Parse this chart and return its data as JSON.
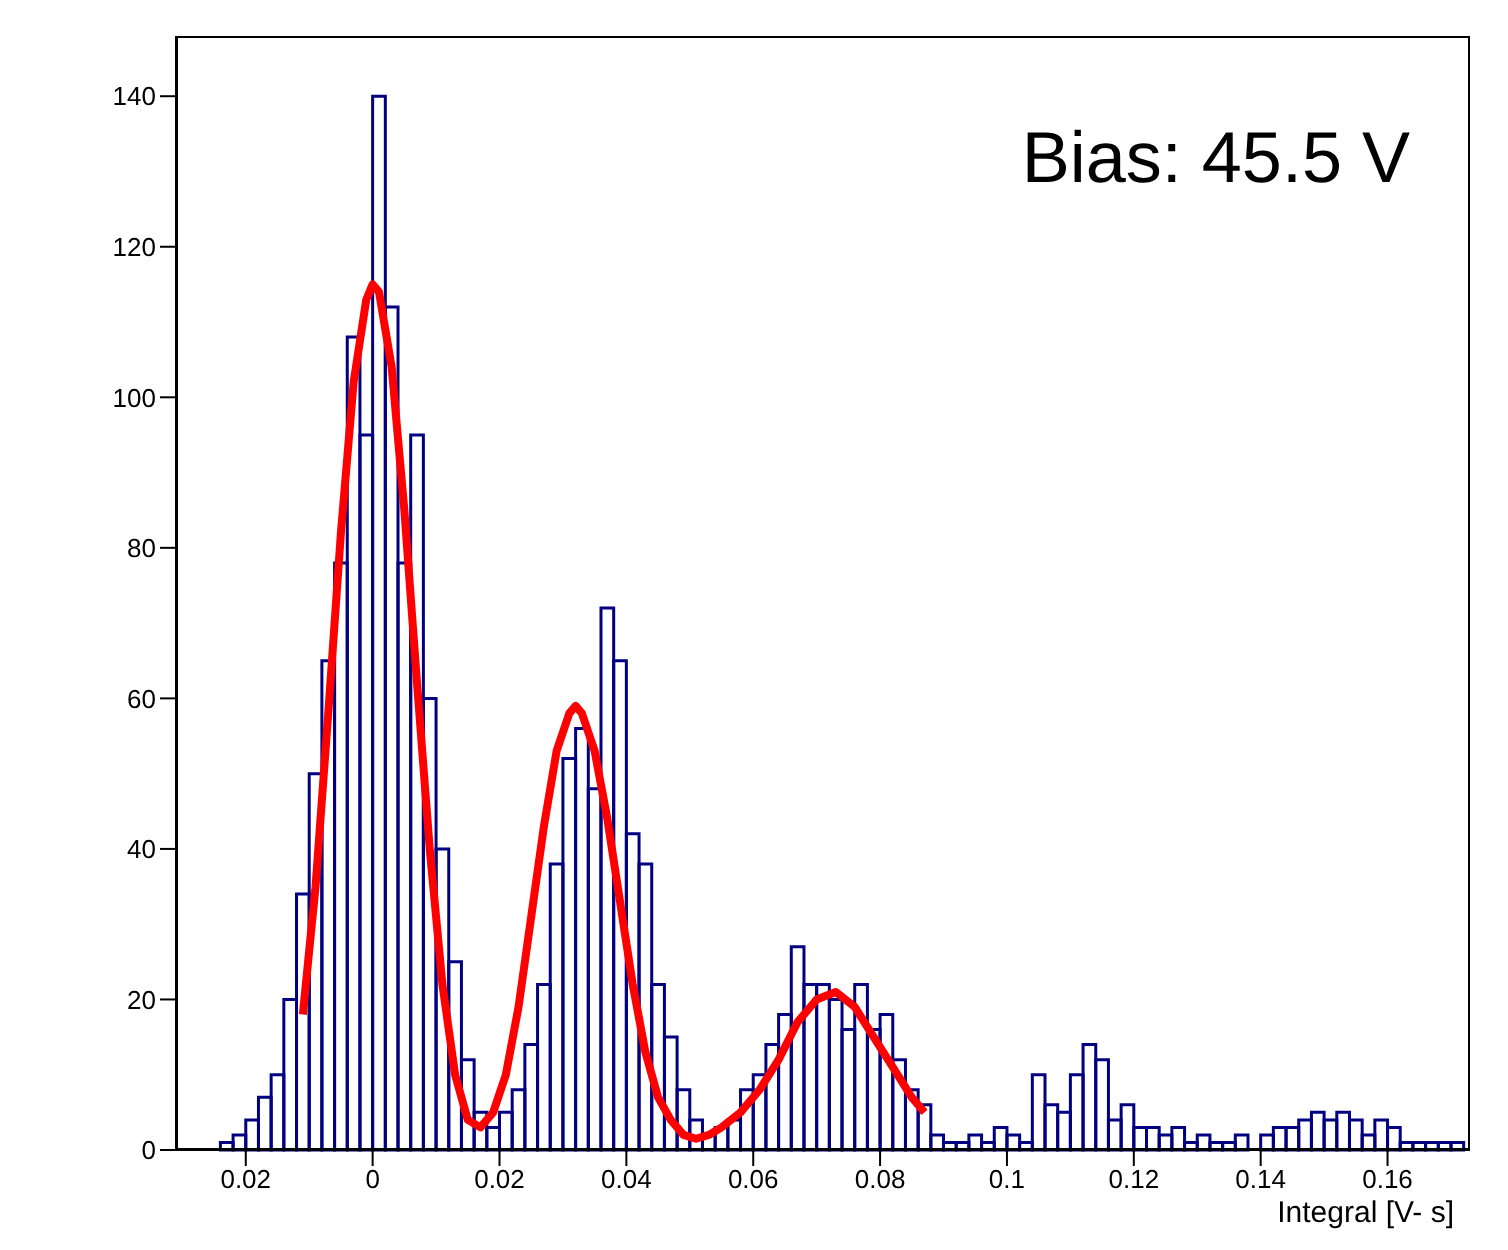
{
  "chart_data": {
    "type": "histogram",
    "xlabel": "Integral [V- s]",
    "annotations": [
      "Bias: 45.5 V"
    ],
    "xlim": [
      -0.031,
      0.173
    ],
    "ylim": [
      0,
      148
    ],
    "xticks": [
      {
        "value": -0.02,
        "label": "0.02"
      },
      0,
      0.02,
      0.04,
      0.06,
      0.08,
      0.1,
      0.12,
      0.14,
      0.16
    ],
    "yticks": [
      0,
      20,
      40,
      60,
      80,
      100,
      120,
      140
    ],
    "grid": false,
    "legend": false,
    "series": [
      {
        "color": "#000080",
        "bins": [
          -0.03,
          -0.028,
          -0.026,
          -0.024,
          -0.022,
          -0.02,
          -0.018,
          -0.016,
          -0.014,
          -0.012,
          -0.01,
          -0.008,
          -0.006,
          -0.004,
          -0.002,
          0,
          0.002,
          0.004,
          0.006,
          0.008,
          0.01,
          0.012,
          0.014,
          0.016,
          0.018,
          0.02,
          0.022,
          0.024,
          0.026,
          0.028,
          0.03,
          0.032,
          0.034,
          0.036,
          0.038,
          0.04,
          0.042,
          0.044,
          0.046,
          0.048,
          0.05,
          0.052,
          0.054,
          0.056,
          0.058,
          0.06,
          0.062,
          0.064,
          0.066,
          0.068,
          0.07,
          0.072,
          0.074,
          0.076,
          0.078,
          0.08,
          0.082,
          0.084,
          0.086,
          0.088,
          0.09,
          0.092,
          0.094,
          0.096,
          0.098,
          0.1,
          0.102,
          0.104,
          0.106,
          0.108,
          0.11,
          0.112,
          0.114,
          0.116,
          0.118,
          0.12,
          0.122,
          0.124,
          0.126,
          0.128,
          0.13,
          0.132,
          0.134,
          0.136,
          0.138,
          0.14,
          0.142,
          0.144,
          0.146,
          0.148,
          0.15,
          0.152,
          0.154,
          0.156,
          0.158,
          0.16,
          0.162,
          0.164,
          0.166,
          0.168,
          0.17,
          0.172
        ],
        "values": [
          0,
          0,
          0,
          1,
          2,
          4,
          7,
          10,
          20,
          34,
          50,
          65,
          78,
          108,
          95,
          140,
          112,
          78,
          95,
          60,
          40,
          25,
          12,
          5,
          3,
          5,
          8,
          14,
          22,
          38,
          52,
          56,
          48,
          72,
          65,
          42,
          38,
          22,
          15,
          8,
          4,
          2,
          3,
          4,
          8,
          10,
          14,
          18,
          27,
          22,
          22,
          20,
          16,
          22,
          16,
          18,
          12,
          8,
          6,
          2,
          1,
          1,
          2,
          1,
          3,
          2,
          1,
          10,
          6,
          5,
          10,
          14,
          12,
          4,
          6,
          3,
          3,
          2,
          3,
          1,
          2,
          1,
          1,
          2,
          0,
          2,
          3,
          3,
          4,
          5,
          4,
          5,
          4,
          2,
          4,
          3,
          1,
          1,
          1,
          1,
          1
        ]
      },
      {
        "type": "line",
        "color": "#ff0000",
        "marker": "none",
        "x": [
          -0.011,
          -0.009,
          -0.007,
          -0.005,
          -0.003,
          -0.001,
          0,
          0.001,
          0.003,
          0.005,
          0.007,
          0.009,
          0.011,
          0.013,
          0.015,
          0.017,
          0.019,
          0.021,
          0.023,
          0.025,
          0.027,
          0.029,
          0.031,
          0.032,
          0.033,
          0.035,
          0.037,
          0.039,
          0.041,
          0.043,
          0.045,
          0.047,
          0.049,
          0.051,
          0.053,
          0.055,
          0.058,
          0.061,
          0.064,
          0.067,
          0.07,
          0.073,
          0.076,
          0.079,
          0.082,
          0.085,
          0.087
        ],
        "values": [
          18,
          35,
          58,
          82,
          102,
          113,
          115,
          114,
          104,
          85,
          62,
          40,
          22,
          10,
          4,
          3,
          5,
          10,
          19,
          31,
          43,
          53,
          58,
          59,
          58,
          53,
          44,
          33,
          22,
          13,
          7,
          4,
          2,
          1.5,
          2,
          3,
          5,
          8,
          12,
          17,
          20,
          21,
          19,
          15,
          11,
          7,
          5
        ]
      }
    ]
  }
}
